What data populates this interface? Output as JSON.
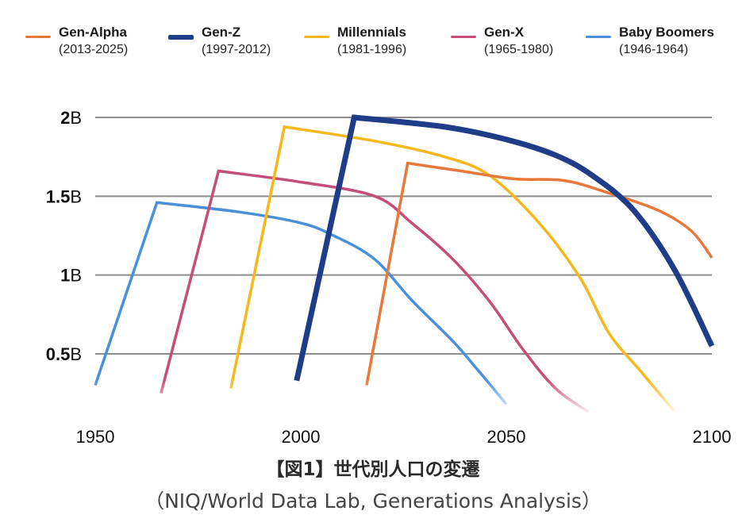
{
  "chart_data": {
    "type": "line",
    "title": "【図1】世代別人口の変遷",
    "subtitle": "（NIQ/World Data Lab, Generations Analysis）",
    "xlabel": "",
    "ylabel": "",
    "xlim": [
      1950,
      2100
    ],
    "ylim": [
      0,
      2.0
    ],
    "x_ticks": [
      1950,
      2000,
      2050,
      2100
    ],
    "x_tick_labels": [
      "1950",
      "2000",
      "2050",
      "2100"
    ],
    "y_ticks": [
      0.5,
      1.0,
      1.5,
      2.0
    ],
    "y_tick_labels": [
      {
        "num": "0.5",
        "unit": "B"
      },
      {
        "num": "1",
        "unit": "B"
      },
      {
        "num": "1.5",
        "unit": "B"
      },
      {
        "num": "2",
        "unit": "B"
      }
    ],
    "grid": true,
    "legend_position": "top",
    "series": [
      {
        "name": "Gen-Alpha",
        "range": "(2013-2025)",
        "color": "#E8773A",
        "emphasis": false,
        "points": [
          [
            2016,
            0.3
          ],
          [
            2026,
            1.71
          ],
          [
            2039,
            1.66
          ],
          [
            2052,
            1.61
          ],
          [
            2064,
            1.6
          ],
          [
            2075,
            1.52
          ],
          [
            2087,
            1.41
          ],
          [
            2095,
            1.28
          ],
          [
            2100,
            1.11
          ]
        ]
      },
      {
        "name": "Gen-Z",
        "range": "(1997-2012)",
        "color": "#1F3C88",
        "emphasis": true,
        "points": [
          [
            1999,
            0.33
          ],
          [
            2013,
            2.0
          ],
          [
            2035,
            1.94
          ],
          [
            2050,
            1.86
          ],
          [
            2062,
            1.76
          ],
          [
            2071,
            1.63
          ],
          [
            2081,
            1.41
          ],
          [
            2091,
            1.03
          ],
          [
            2100,
            0.55
          ]
        ]
      },
      {
        "name": "Millennials",
        "range": "(1981-1996)",
        "color": "#F5B71C",
        "emphasis": false,
        "points": [
          [
            1983,
            0.28
          ],
          [
            1996,
            1.94
          ],
          [
            2018,
            1.85
          ],
          [
            2035,
            1.75
          ],
          [
            2046,
            1.63
          ],
          [
            2058,
            1.33
          ],
          [
            2068,
            0.98
          ],
          [
            2075,
            0.63
          ],
          [
            2083,
            0.38
          ],
          [
            2091,
            0.13
          ]
        ]
      },
      {
        "name": "Gen-X",
        "range": "(1965-1980)",
        "color": "#C44D7A",
        "emphasis": false,
        "points": [
          [
            1966,
            0.25
          ],
          [
            1980,
            1.66
          ],
          [
            2000,
            1.59
          ],
          [
            2018,
            1.5
          ],
          [
            2027,
            1.33
          ],
          [
            2037,
            1.1
          ],
          [
            2046,
            0.83
          ],
          [
            2054,
            0.53
          ],
          [
            2062,
            0.28
          ],
          [
            2070,
            0.13
          ]
        ]
      },
      {
        "name": "Baby Boomers",
        "range": "(1946-1964)",
        "color": "#4A90D9",
        "emphasis": false,
        "points": [
          [
            1950,
            0.3
          ],
          [
            1965,
            1.46
          ],
          [
            1985,
            1.4
          ],
          [
            2000,
            1.33
          ],
          [
            2008,
            1.25
          ],
          [
            2018,
            1.1
          ],
          [
            2027,
            0.84
          ],
          [
            2037,
            0.58
          ],
          [
            2043,
            0.4
          ],
          [
            2050,
            0.18
          ]
        ]
      }
    ]
  }
}
